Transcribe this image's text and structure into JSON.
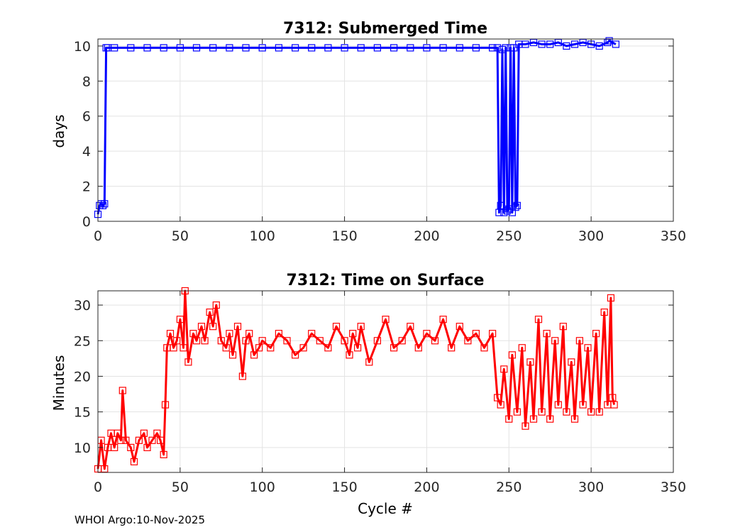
{
  "footer": "WHOI Argo:10-Nov-2025",
  "chart_data": [
    {
      "type": "line",
      "title": "7312: Submerged Time",
      "xlabel": "",
      "ylabel": "days",
      "xlim": [
        0,
        350
      ],
      "ylim": [
        0,
        10.4
      ],
      "xticks": [
        0,
        50,
        100,
        150,
        200,
        250,
        300,
        350
      ],
      "yticks": [
        0,
        2,
        4,
        6,
        8,
        10
      ],
      "grid": true,
      "marker": "square",
      "color": "#0000ff",
      "series": [
        {
          "name": "Submerged Time",
          "x": [
            0,
            1,
            2,
            3,
            4,
            5,
            6,
            10,
            20,
            30,
            40,
            50,
            60,
            70,
            80,
            90,
            100,
            110,
            120,
            130,
            140,
            150,
            160,
            170,
            180,
            190,
            200,
            210,
            220,
            230,
            240,
            243,
            244,
            245,
            246,
            247,
            248,
            249,
            250,
            251,
            252,
            253,
            254,
            255,
            256,
            260,
            265,
            270,
            275,
            280,
            285,
            290,
            295,
            300,
            305,
            310,
            311,
            315
          ],
          "y": [
            0.4,
            0.9,
            1.0,
            0.9,
            1.0,
            9.9,
            9.9,
            9.9,
            9.9,
            9.9,
            9.9,
            9.9,
            9.9,
            9.9,
            9.9,
            9.9,
            9.9,
            9.9,
            9.9,
            9.9,
            9.9,
            9.9,
            9.9,
            9.9,
            9.9,
            9.9,
            9.9,
            9.9,
            9.9,
            9.9,
            9.9,
            9.9,
            0.5,
            0.9,
            9.8,
            0.5,
            9.9,
            0.6,
            0.7,
            9.9,
            0.5,
            9.9,
            0.8,
            0.9,
            10.1,
            10.1,
            10.2,
            10.1,
            10.1,
            10.2,
            10.0,
            10.1,
            10.2,
            10.1,
            10.0,
            10.2,
            10.3,
            10.1
          ]
        }
      ]
    },
    {
      "type": "line",
      "title": "7312: Time on Surface",
      "xlabel": "Cycle #",
      "ylabel": "Minutes",
      "xlim": [
        0,
        350
      ],
      "ylim": [
        6.5,
        32
      ],
      "xticks": [
        0,
        50,
        100,
        150,
        200,
        250,
        300,
        350
      ],
      "yticks": [
        10,
        15,
        20,
        25,
        30
      ],
      "grid": true,
      "marker": "square",
      "color": "#ff0000",
      "series": [
        {
          "name": "Time on Surface",
          "x": [
            0,
            2,
            4,
            6,
            8,
            10,
            12,
            14,
            15,
            17,
            20,
            22,
            25,
            28,
            30,
            33,
            36,
            38,
            40,
            41,
            42,
            44,
            46,
            48,
            50,
            52,
            53,
            55,
            58,
            60,
            63,
            65,
            68,
            70,
            72,
            75,
            78,
            80,
            82,
            85,
            88,
            90,
            92,
            95,
            98,
            100,
            105,
            110,
            115,
            120,
            125,
            130,
            135,
            140,
            145,
            150,
            153,
            155,
            158,
            160,
            165,
            170,
            175,
            180,
            185,
            190,
            195,
            200,
            205,
            210,
            215,
            220,
            225,
            230,
            235,
            240,
            243,
            245,
            247,
            250,
            252,
            255,
            258,
            260,
            263,
            265,
            268,
            270,
            273,
            275,
            278,
            280,
            283,
            285,
            288,
            290,
            293,
            295,
            298,
            300,
            303,
            305,
            308,
            310,
            312,
            313,
            314
          ],
          "y": [
            7,
            11,
            7,
            10,
            12,
            10,
            12,
            11,
            18,
            11,
            10,
            8,
            11,
            12,
            10,
            11,
            12,
            11,
            9,
            16,
            24,
            26,
            24,
            25,
            28,
            24,
            32,
            22,
            26,
            25,
            27,
            25,
            29,
            27,
            30,
            25,
            24,
            26,
            23,
            27,
            20,
            25,
            26,
            23,
            24,
            25,
            24,
            26,
            25,
            23,
            24,
            26,
            25,
            24,
            27,
            25,
            23,
            26,
            24,
            27,
            22,
            25,
            28,
            24,
            25,
            27,
            24,
            26,
            25,
            28,
            24,
            27,
            25,
            26,
            24,
            26,
            17,
            16,
            21,
            14,
            23,
            15,
            24,
            13,
            22,
            14,
            28,
            15,
            26,
            14,
            25,
            16,
            27,
            15,
            22,
            14,
            25,
            16,
            24,
            15,
            26,
            15,
            29,
            16,
            31,
            17,
            16
          ]
        }
      ]
    }
  ]
}
